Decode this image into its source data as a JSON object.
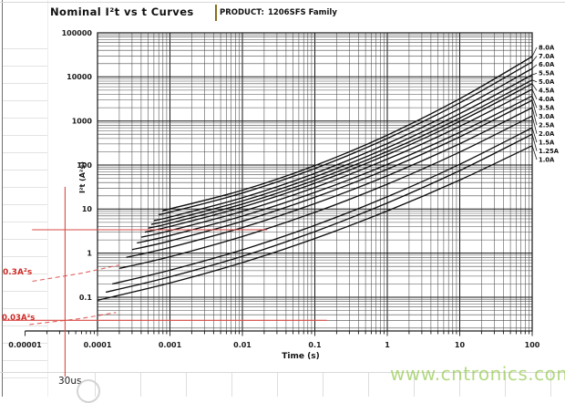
{
  "header": {
    "title": "Nominal I²t vs t Curves",
    "product_label": "PRODUCT:",
    "product_value": "1206SFS Family"
  },
  "chart_data": {
    "type": "line",
    "title": "Nominal I²t vs t Curves",
    "xlabel": "Time (s)",
    "ylabel": "I²t (A²s)",
    "x_scale": "log",
    "y_scale": "log",
    "xlim": [
      1e-05,
      100
    ],
    "ylim": [
      0.0175,
      100000
    ],
    "x_ticks": [
      "0.00001",
      "0.0001",
      "0.001",
      "0.01",
      "0.1",
      "1",
      "10",
      "100"
    ],
    "y_ticks": [
      "100000",
      "10000",
      "1000",
      "100",
      "10",
      "1",
      "0.1"
    ],
    "grid": "log-major-and-minor",
    "legend_position": "right-edge-leader-lines",
    "series": [
      {
        "name": "8.0A",
        "points": [
          [
            0.00085,
            9.5
          ],
          [
            0.001,
            10.1
          ],
          [
            0.01,
            26.8
          ],
          [
            0.1,
            97.2
          ],
          [
            1,
            478
          ],
          [
            10,
            3195
          ],
          [
            100,
            29000
          ]
        ]
      },
      {
        "name": "7.0A",
        "points": [
          [
            0.0007,
            7.5
          ],
          [
            0.001,
            8.53
          ],
          [
            0.01,
            23.1
          ],
          [
            0.1,
            83.2
          ],
          [
            1,
            400
          ],
          [
            10,
            2570
          ],
          [
            100,
            22000
          ]
        ]
      },
      {
        "name": "6.0A",
        "points": [
          [
            0.0006,
            5.5
          ],
          [
            0.001,
            6.62
          ],
          [
            0.01,
            18.1
          ],
          [
            0.1,
            64.8
          ],
          [
            1,
            306
          ],
          [
            10,
            1900
          ],
          [
            100,
            15500
          ]
        ]
      },
      {
        "name": "5.5A",
        "points": [
          [
            0.00055,
            4.5
          ],
          [
            0.001,
            5.59
          ],
          [
            0.01,
            15.3
          ],
          [
            0.1,
            53.8
          ],
          [
            1,
            246
          ],
          [
            10,
            1460
          ],
          [
            100,
            11200
          ]
        ]
      },
      {
        "name": "5.0A",
        "points": [
          [
            0.0005,
            3.7
          ],
          [
            0.001,
            4.77
          ],
          [
            0.01,
            13.0
          ],
          [
            0.1,
            45.4
          ],
          [
            1,
            203
          ],
          [
            10,
            1160
          ],
          [
            100,
            8500
          ]
        ]
      },
      {
        "name": "4.5A",
        "points": [
          [
            0.00045,
            3.0
          ],
          [
            0.001,
            4.03
          ],
          [
            0.01,
            11.1
          ],
          [
            0.1,
            38.6
          ],
          [
            1,
            172
          ],
          [
            10,
            973
          ],
          [
            100,
            7000
          ]
        ]
      },
      {
        "name": "4.0A",
        "points": [
          [
            0.0004,
            2.3
          ],
          [
            0.001,
            3.23
          ],
          [
            0.01,
            8.9
          ],
          [
            0.1,
            31.0
          ],
          [
            1,
            136
          ],
          [
            10,
            752
          ],
          [
            100,
            5250
          ]
        ]
      },
      {
        "name": "3.5A",
        "points": [
          [
            0.00035,
            1.7
          ],
          [
            0.001,
            2.51
          ],
          [
            0.01,
            6.95
          ],
          [
            0.1,
            23.9
          ],
          [
            1,
            103
          ],
          [
            10,
            553
          ],
          [
            100,
            3700
          ]
        ]
      },
      {
        "name": "3.0A",
        "points": [
          [
            0.0003,
            1.2
          ],
          [
            0.001,
            1.89
          ],
          [
            0.01,
            5.29
          ],
          [
            0.1,
            18.5
          ],
          [
            1,
            80.4
          ],
          [
            10,
            436
          ],
          [
            100,
            2950
          ]
        ]
      },
      {
        "name": "2.5A",
        "points": [
          [
            0.00025,
            0.8
          ],
          [
            0.001,
            1.35
          ],
          [
            0.01,
            3.81
          ],
          [
            0.1,
            13.3
          ],
          [
            1,
            57.3
          ],
          [
            10,
            305
          ],
          [
            100,
            2000
          ]
        ]
      },
      {
        "name": "2.0A",
        "points": [
          [
            0.0002,
            0.45
          ],
          [
            0.001,
            0.83
          ],
          [
            0.01,
            2.39
          ],
          [
            0.1,
            8.44
          ],
          [
            1,
            36.8
          ],
          [
            10,
            197
          ],
          [
            100,
            1300
          ]
        ]
      },
      {
        "name": "1.5A",
        "points": [
          [
            0.00016,
            0.2
          ],
          [
            0.001,
            0.41
          ],
          [
            0.01,
            1.19
          ],
          [
            0.1,
            4.29
          ],
          [
            1,
            19.0
          ],
          [
            10,
            104
          ],
          [
            100,
            700
          ]
        ]
      },
      {
        "name": "1.25A",
        "points": [
          [
            0.00013,
            0.13
          ],
          [
            0.001,
            0.29
          ],
          [
            0.01,
            0.85
          ],
          [
            0.1,
            3.09
          ],
          [
            1,
            13.8
          ],
          [
            10,
            74.9
          ],
          [
            100,
            500
          ]
        ]
      },
      {
        "name": "1.0A",
        "points": [
          [
            0.0001,
            0.085
          ],
          [
            0.001,
            0.21
          ],
          [
            0.01,
            0.61
          ],
          [
            0.1,
            2.15
          ],
          [
            1,
            9.05
          ],
          [
            10,
            45.6
          ],
          [
            100,
            275
          ]
        ]
      }
    ],
    "annotations": {
      "upper_hline": {
        "i2t": 3.4,
        "t_start": 1.25e-05,
        "t_end": 0.022
      },
      "lower_hline": {
        "i2t": 0.03,
        "t_start": 4.8e-06,
        "t_end": 0.147
      },
      "vline": {
        "t": 3e-05,
        "i2t_top": 32,
        "label": "30us"
      },
      "dashed_upper": {
        "label": "0.3A²s",
        "points": [
          [
            1.26e-05,
            0.23
          ],
          [
            6e-05,
            0.35
          ],
          [
            0.0002,
            0.54
          ]
        ]
      },
      "dashed_lower": {
        "label": "0.03A²s",
        "points": [
          [
            1.15e-05,
            0.024
          ],
          [
            6e-05,
            0.033
          ],
          [
            0.00018,
            0.045
          ]
        ]
      },
      "accent_color": "#d94a44"
    }
  },
  "watermark": {
    "text": "www.cntronics.com",
    "color": "#8cc63f"
  }
}
